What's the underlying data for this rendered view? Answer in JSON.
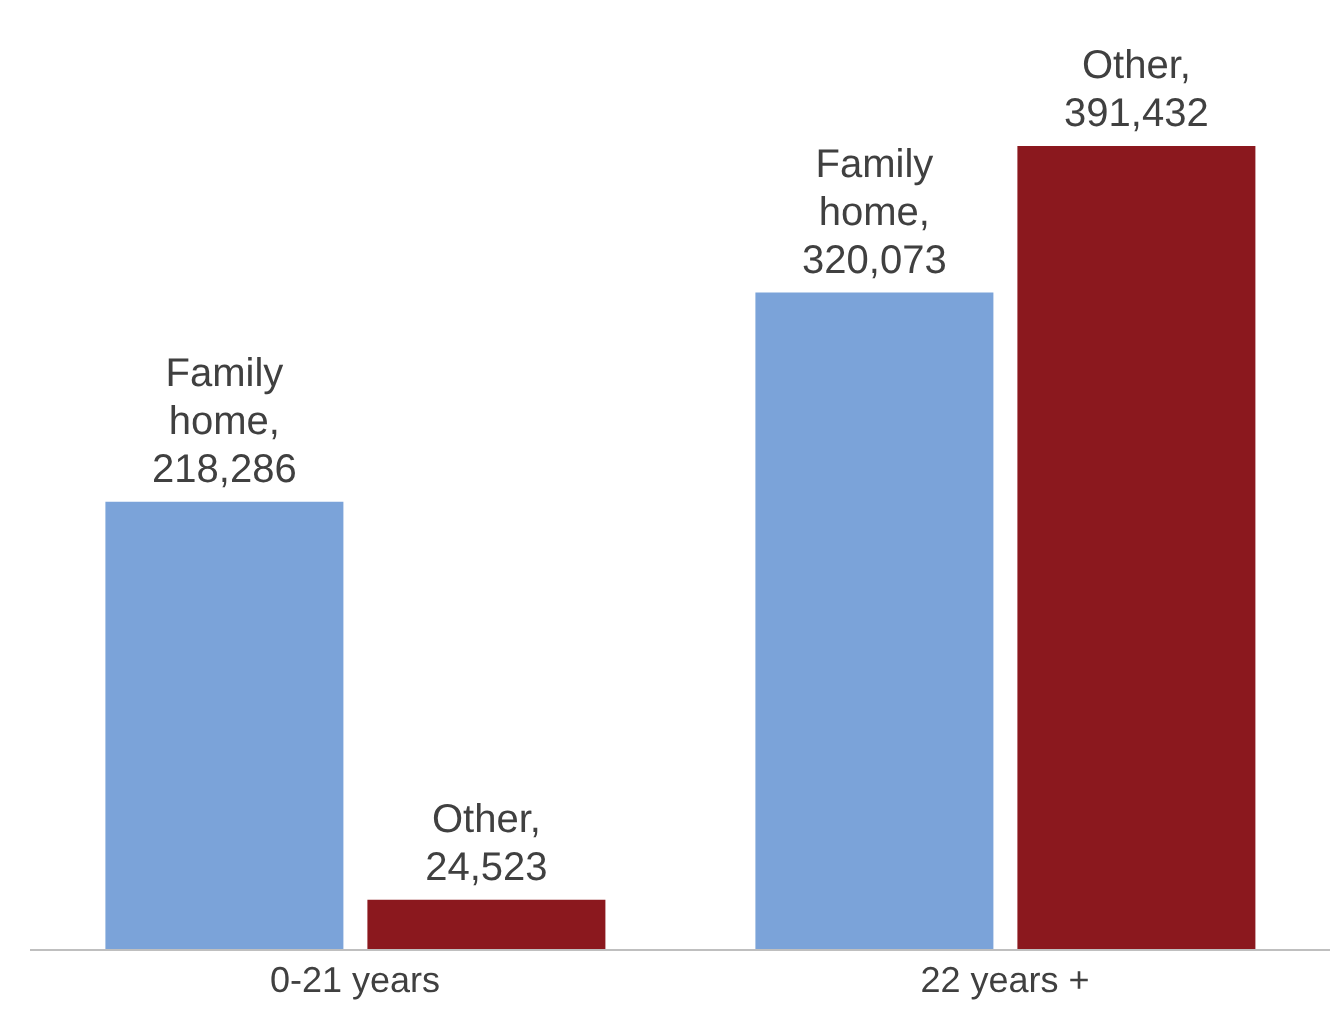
{
  "chart_data": {
    "type": "bar",
    "categories": [
      "0-21 years",
      "22 years +"
    ],
    "series": [
      {
        "color": "#7ba3d9",
        "values": [
          218286,
          320073
        ],
        "value_labels": [
          "Family home, 218,286",
          "Family home, 320,073"
        ]
      },
      {
        "color": "#8b181e",
        "values": [
          24523,
          391432
        ],
        "value_labels": [
          "Other, 24,523",
          "Other, 391,432"
        ]
      }
    ]
  }
}
